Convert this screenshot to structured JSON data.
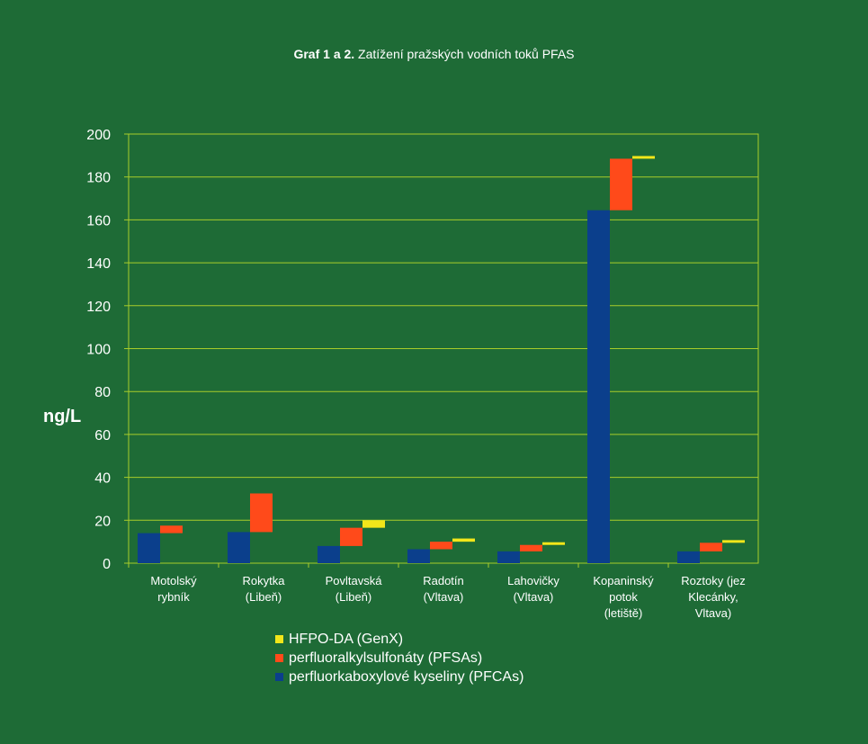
{
  "title": {
    "bold": "Graf 1 a 2.",
    "rest": " Zatížení pražských vodních toků PFAS"
  },
  "chart_data": {
    "type": "bar",
    "subtype": "stacked-waterfall",
    "title": "Graf 1 a 2. Zatížení pražských vodních toků PFAS",
    "xlabel": "",
    "ylabel": "ng/L",
    "ylim": [
      0,
      200
    ],
    "yticks": [
      0,
      20,
      40,
      60,
      80,
      100,
      120,
      140,
      160,
      180,
      200
    ],
    "grid": true,
    "legend_position": "bottom",
    "categories": [
      "Motolský rybník",
      "Rokytka (Libeň)",
      "Povltavská (Libeň)",
      "Radotín (Vltava)",
      "Lahovičky (Vltava)",
      "Kopaninský potok (letiště)",
      "Roztoky (jez Klecánky, Vltava)"
    ],
    "category_lines": [
      [
        "Motolský",
        "rybník"
      ],
      [
        "Rokytka",
        "(Libeň)"
      ],
      [
        "Povltavská",
        "(Libeň)"
      ],
      [
        "Radotín",
        "(Vltava)"
      ],
      [
        "Lahovičky",
        "(Vltava)"
      ],
      [
        "Kopaninský",
        "potok",
        "(letiště)"
      ],
      [
        "Roztoky (jez",
        "Klecánky,",
        "Vltava)"
      ]
    ],
    "series": [
      {
        "name": "perfluorkaboxylové kyseliny (PFCAs)",
        "color": "#0b3f8c",
        "values": [
          14,
          14.5,
          8,
          6.5,
          5.5,
          164.5,
          5.5
        ]
      },
      {
        "name": "perfluoralkylsulfonáty (PFSAs)",
        "color": "#ff4a1a",
        "values": [
          3.5,
          18,
          8.5,
          3.5,
          3,
          24,
          4
        ]
      },
      {
        "name": "HFPO-DA (GenX)",
        "color": "#f2e61a",
        "values": [
          0,
          0,
          3.5,
          1.5,
          1,
          1,
          1
        ]
      }
    ],
    "legend_order": [
      2,
      1,
      0
    ]
  }
}
